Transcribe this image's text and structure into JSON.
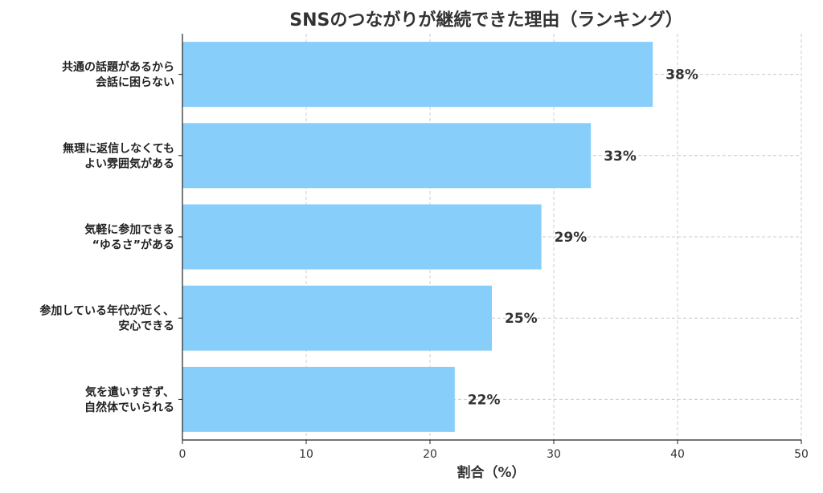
{
  "chart_data": {
    "type": "bar",
    "orientation": "horizontal",
    "title": "SNSのつながりが継続できた理由（ランキング）",
    "xlabel": "割合（%）",
    "ylabel": "",
    "xlim": [
      0,
      50
    ],
    "xticks": [
      0,
      10,
      20,
      30,
      40,
      50
    ],
    "grid": true,
    "categories": [
      [
        "共通の話題があるから",
        "会話に困らない"
      ],
      [
        "無理に返信しなくても",
        "よい雰囲気がある"
      ],
      [
        "気軽に参加できる",
        "“ゆるさ”がある"
      ],
      [
        "参加している年代が近く、",
        "安心できる"
      ],
      [
        "気を遣いすぎず、",
        "自然体でいられる"
      ]
    ],
    "values": [
      38,
      33,
      29,
      25,
      22
    ],
    "value_labels": [
      "38%",
      "33%",
      "29%",
      "25%",
      "22%"
    ],
    "colors": {
      "bar": "#87CEFA",
      "grid": "#cccccc",
      "axis": "#222222"
    }
  }
}
